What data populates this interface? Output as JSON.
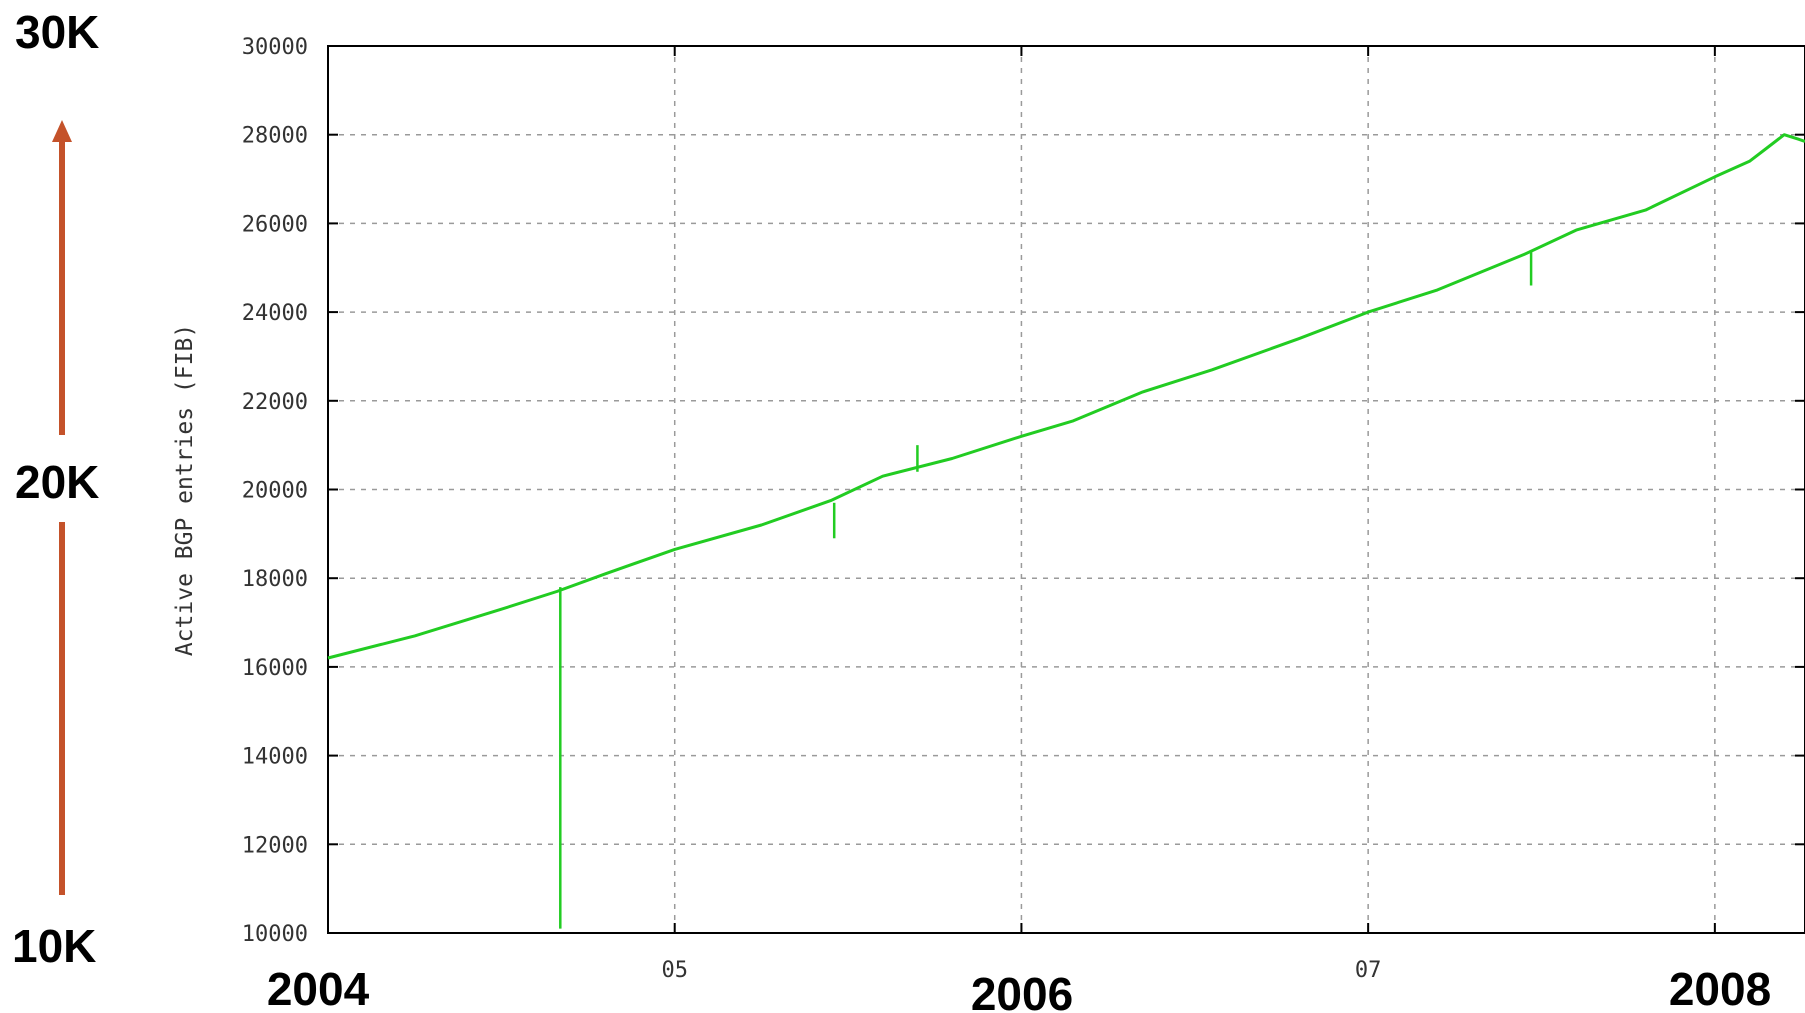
{
  "left_scale": {
    "top_label": "30K",
    "mid_label": "20K",
    "bottom_label": "10K",
    "arrow_color": "#c4522a"
  },
  "year_labels": [
    "2004",
    "2006",
    "2008"
  ],
  "chart_data": {
    "type": "line",
    "title": "",
    "xlabel": "",
    "ylabel": "Active BGP entries (FIB)",
    "x_tick_labels": [
      "05",
      "07"
    ],
    "x_range": [
      2004.0,
      2008.26
    ],
    "ylim": [
      10000,
      30000
    ],
    "y_ticks": [
      10000,
      12000,
      14000,
      16000,
      18000,
      20000,
      22000,
      24000,
      26000,
      28000,
      30000
    ],
    "grid": true,
    "line_color": "#22cc22",
    "series": [
      {
        "x": [
          2004.0,
          2004.25,
          2004.5,
          2004.66,
          2004.8,
          2005.0,
          2005.25,
          2005.45,
          2005.6,
          2005.8,
          2006.0,
          2006.15,
          2006.35,
          2006.55,
          2006.8,
          2007.0,
          2007.2,
          2007.45,
          2007.6,
          2007.8,
          2008.0,
          2008.1,
          2008.15,
          2008.2,
          2008.24,
          2008.26
        ],
        "values": [
          16200,
          16700,
          17300,
          17700,
          18100,
          18650,
          19200,
          19750,
          20300,
          20700,
          21200,
          21550,
          22200,
          22700,
          23400,
          24000,
          24500,
          25300,
          25850,
          26300,
          27050,
          27400,
          27700,
          28000,
          27900,
          27850
        ]
      }
    ],
    "spikes": [
      {
        "x": 2004.67,
        "from": 17800,
        "to": 10100
      },
      {
        "x": 2005.46,
        "from": 19700,
        "to": 18900
      },
      {
        "x": 2005.7,
        "from": 20400,
        "to": 21000
      },
      {
        "x": 2007.47,
        "from": 25400,
        "to": 24600
      }
    ]
  }
}
